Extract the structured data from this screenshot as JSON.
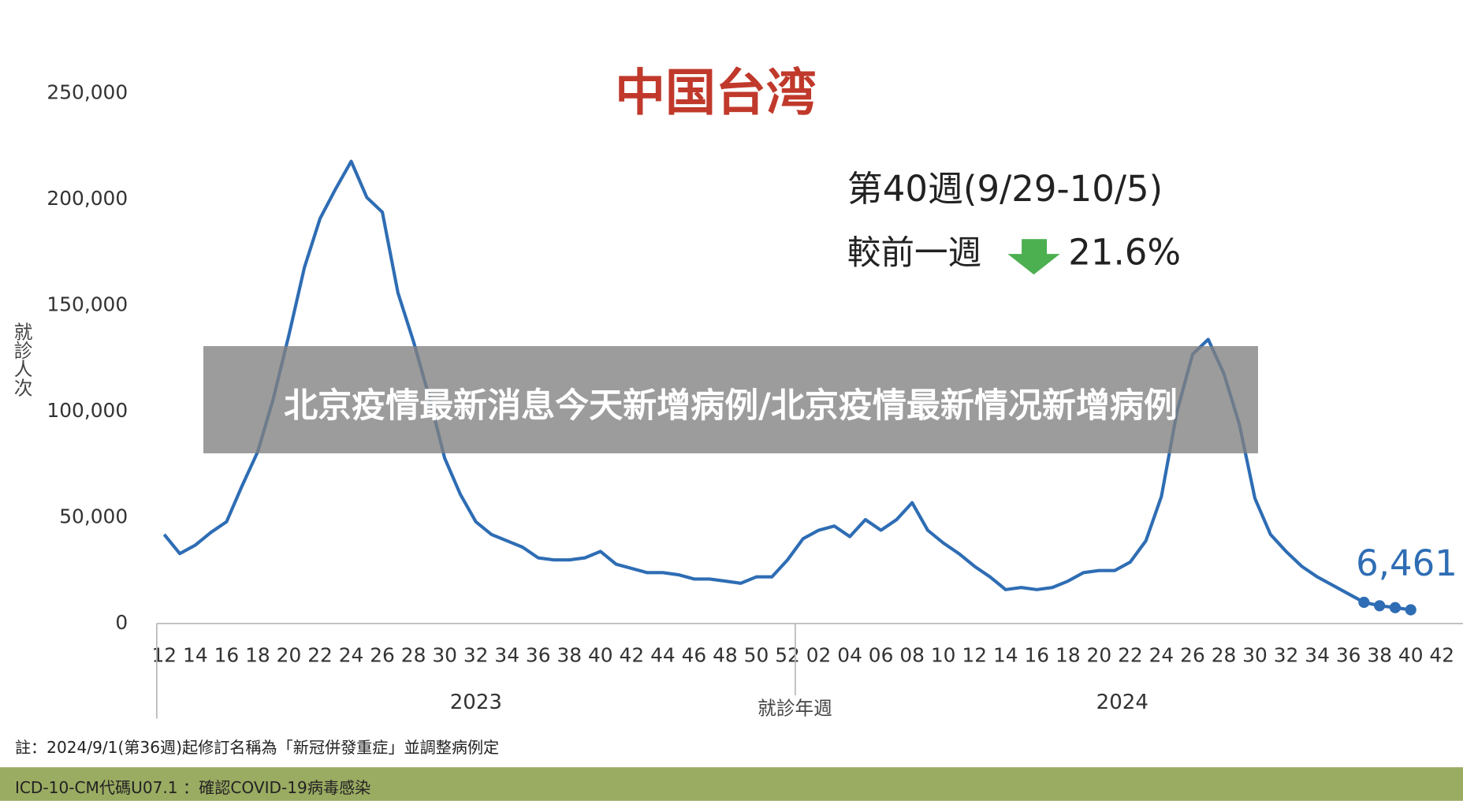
{
  "overlay_title": "北京疫情最新消息今天新增病例/北京疫情最新情况新增病例",
  "chart_data": {
    "type": "line",
    "title": "中国台湾",
    "subtitle": "第40週(9/29-10/5)",
    "change_label": "較前一週",
    "change_value": "21.6%",
    "y_label": "就診人次",
    "x_label": "就診年週",
    "x_groups": [
      "2023",
      "2024"
    ],
    "color": "#2e6db4",
    "categories": [
      "12",
      null,
      "14",
      null,
      "16",
      null,
      "18",
      null,
      "20",
      null,
      "22",
      null,
      "24",
      null,
      "26",
      null,
      "28",
      null,
      "30",
      null,
      "32",
      null,
      "34",
      null,
      "36",
      null,
      "38",
      null,
      "40",
      null,
      "42",
      null,
      "44",
      null,
      "46",
      null,
      "48",
      null,
      "50",
      null,
      "52",
      null,
      "02",
      null,
      "04",
      null,
      "06",
      null,
      "08",
      null,
      "10",
      null,
      "12",
      null,
      "14",
      null,
      "16",
      null,
      "18",
      null,
      "20",
      null,
      "22",
      null,
      "24",
      null,
      "26",
      null,
      "28",
      null,
      "30",
      null,
      "32",
      null,
      "34",
      null,
      "36",
      null,
      "38",
      null,
      "40",
      null,
      "42"
    ],
    "values": [
      42000,
      33000,
      37000,
      43000,
      48000,
      65000,
      81000,
      106000,
      136000,
      168000,
      191000,
      205000,
      218000,
      201000,
      194000,
      156000,
      133000,
      107000,
      78000,
      61000,
      48000,
      42000,
      39000,
      36000,
      31000,
      30000,
      30000,
      31000,
      34000,
      28000,
      26000,
      24000,
      24000,
      23000,
      21000,
      21000,
      20000,
      19000,
      22000,
      22000,
      30000,
      40000,
      44000,
      46000,
      41000,
      49000,
      44000,
      49000,
      57000,
      44000,
      38000,
      33000,
      27000,
      22000,
      16000,
      17000,
      16000,
      17000,
      20000,
      24000,
      25000,
      25000,
      29000,
      39000,
      60000,
      100000,
      127000,
      134000,
      118000,
      94000,
      59000,
      42000,
      34000,
      27000,
      22000,
      18000,
      14000,
      10000,
      8400,
      7500,
      6461,
      null,
      null
    ],
    "value_labels": [
      null,
      null,
      null,
      null,
      null,
      null,
      null,
      null,
      null,
      null,
      null,
      null,
      null,
      null,
      null,
      null,
      null,
      null,
      null,
      null,
      null,
      null,
      null,
      null,
      null,
      null,
      null,
      null,
      null,
      null,
      null,
      null,
      null,
      null,
      null,
      null,
      null,
      null,
      null,
      null,
      null,
      null,
      null,
      null,
      null,
      null,
      null,
      null,
      null,
      null,
      null,
      null,
      null,
      null,
      null,
      null,
      null,
      null,
      null,
      null,
      null,
      null,
      null,
      null,
      null,
      null,
      null,
      null,
      null,
      null,
      null,
      null,
      null,
      null,
      null,
      null,
      null,
      null,
      null,
      null,
      "6,461",
      null,
      null
    ],
    "ylim": [
      0,
      250000
    ],
    "yticks": [
      0,
      {
        "value": 50000,
        "label": "50,000"
      },
      {
        "value": 100000,
        "label": "100,000"
      },
      {
        "value": 150000,
        "label": "150,000"
      },
      {
        "value": 200000,
        "label": "200,000"
      },
      {
        "value": 250000,
        "label": "250,000"
      }
    ]
  },
  "notes": [
    "註：2024/9/1(第36週)起修訂名稱為「新冠併發重症」並調整病例定",
    "ICD-10-CM代碼U07.1 ：確認COVID-19病毒感染"
  ]
}
